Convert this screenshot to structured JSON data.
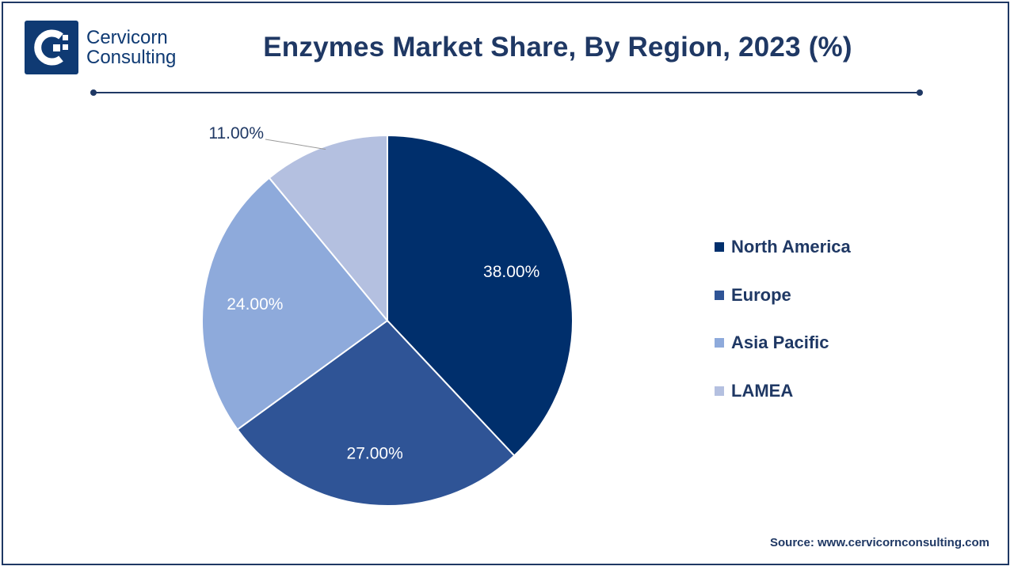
{
  "brand": {
    "line1": "Cervicorn",
    "line2": "Consulting",
    "color": "#0f3a73"
  },
  "title": "Enzymes Market Share, By Region, 2023 (%)",
  "source": "Source: www.cervicornconsulting.com",
  "chart_data": {
    "type": "pie",
    "title": "Enzymes Market Share, By Region, 2023 (%)",
    "categories": [
      "North America",
      "Europe",
      "Asia Pacific",
      "LAMEA"
    ],
    "values": [
      38.0,
      27.0,
      24.0,
      11.0
    ],
    "labels": [
      "38.00%",
      "27.00%",
      "24.00%",
      "11.00%"
    ],
    "colors": [
      "#002f6c",
      "#2f5496",
      "#8eaadb",
      "#b4c0e0"
    ],
    "legend_position": "right",
    "start_angle": "12 o'clock, clockwise"
  }
}
